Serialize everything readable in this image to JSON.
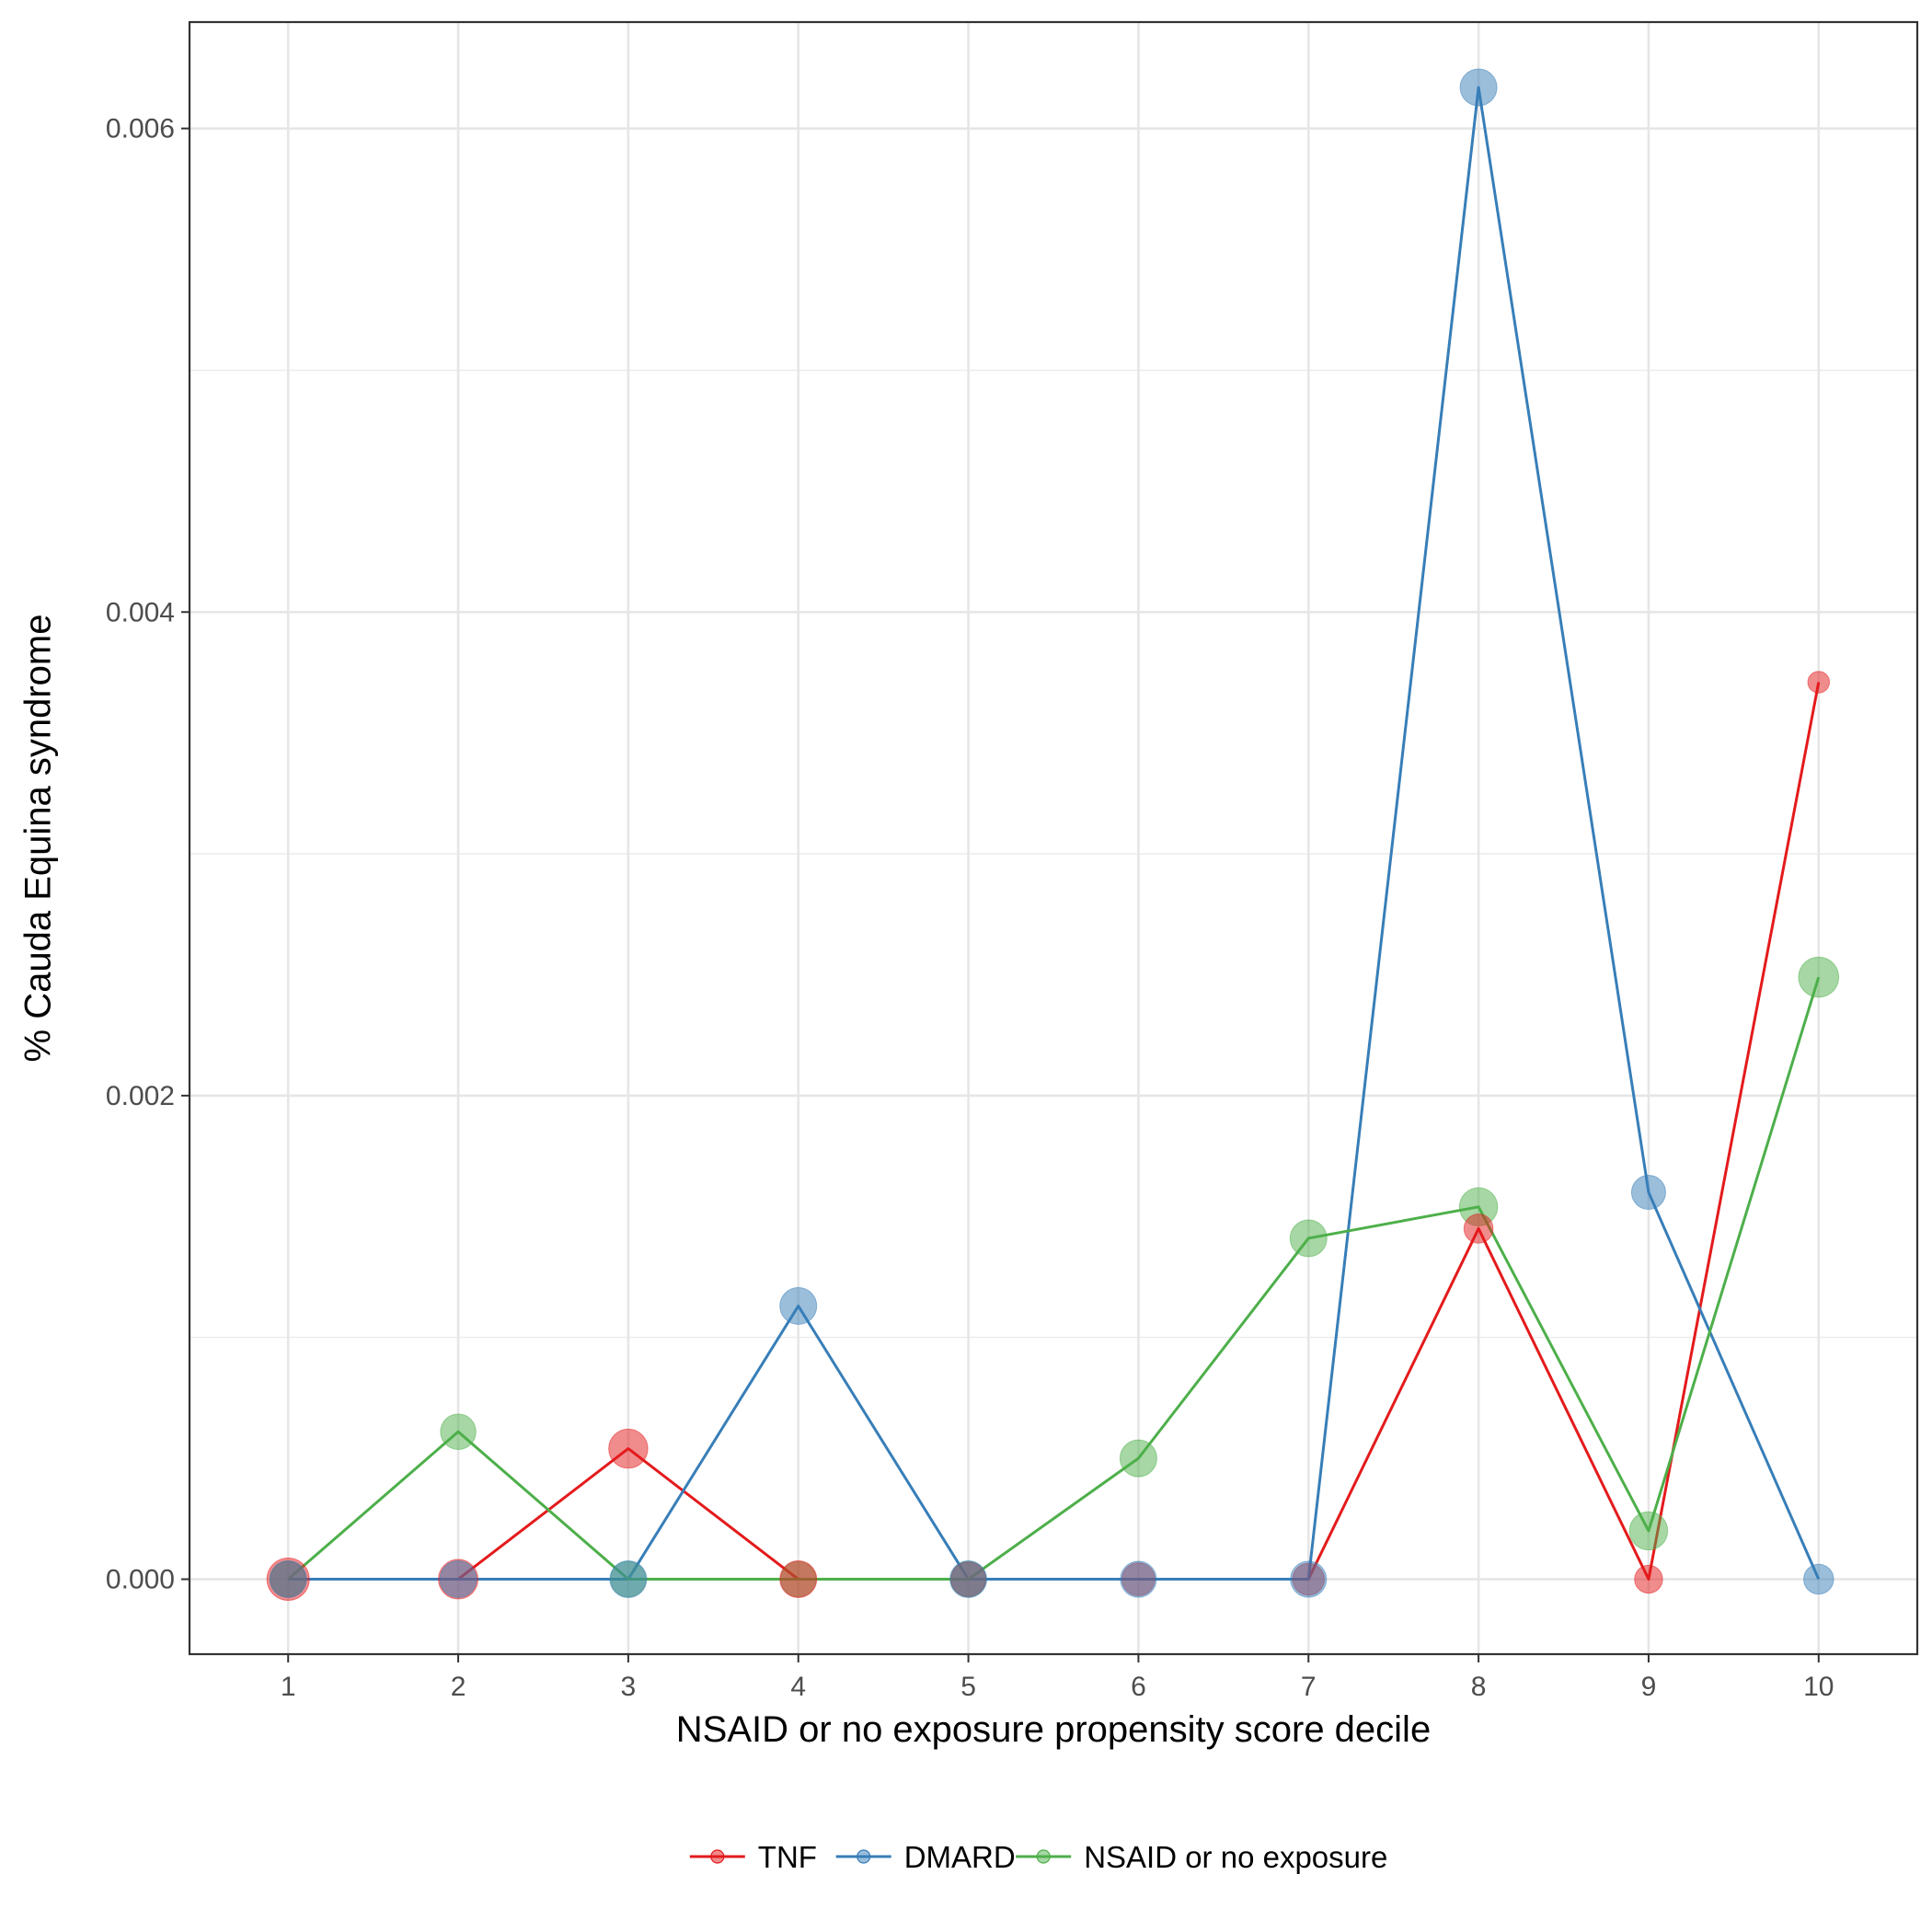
{
  "chart_data": {
    "type": "line",
    "title": "",
    "xlabel": "NSAID or no exposure propensity score decile",
    "ylabel": "% Cauda Equina syndrome",
    "x": [
      1,
      2,
      3,
      4,
      5,
      6,
      7,
      8,
      9,
      10
    ],
    "xticks": [
      "1",
      "2",
      "3",
      "4",
      "5",
      "6",
      "7",
      "8",
      "9",
      "10"
    ],
    "yticks": [
      "0.000",
      "0.002",
      "0.004",
      "0.006"
    ],
    "ytick_values": [
      0,
      0.002,
      0.004,
      0.006
    ],
    "xlim": [
      0.42,
      10.58
    ],
    "ylim": [
      -0.00031,
      0.00644
    ],
    "grid": true,
    "legend_position": "bottom",
    "series": [
      {
        "name": "TNF",
        "color": "#e41a1c",
        "values": [
          0,
          0,
          0.00054,
          0,
          0,
          0,
          0,
          0.00145,
          0,
          0.00371
        ],
        "sizes": [
          1.0,
          0.9,
          0.88,
          0.8,
          0.72,
          0.66,
          0.62,
          0.52,
          0.48,
          0.25
        ]
      },
      {
        "name": "DMARD",
        "color": "#377eb8",
        "values": [
          0,
          0,
          0,
          0.00113,
          0,
          0,
          0,
          0.00617,
          0.0016,
          0
        ],
        "sizes": [
          0.8,
          0.8,
          0.8,
          0.8,
          0.8,
          0.77,
          0.77,
          0.8,
          0.7,
          0.55
        ]
      },
      {
        "name": "NSAID or no exposure",
        "color": "#4daf4a",
        "values": [
          0,
          0.00061,
          0,
          0,
          0,
          0.0005,
          0.00141,
          0.00154,
          0.0002,
          0.00249
        ],
        "sizes": [
          0.75,
          0.75,
          0.75,
          0.75,
          0.75,
          0.8,
          0.8,
          0.85,
          0.85,
          0.92
        ]
      }
    ]
  }
}
